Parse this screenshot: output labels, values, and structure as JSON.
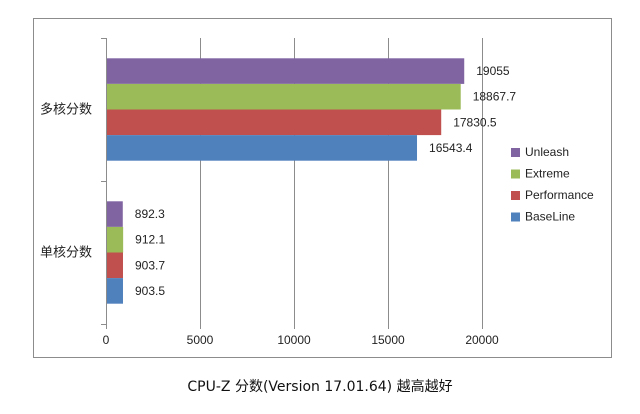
{
  "chart_data": {
    "type": "bar",
    "orientation": "horizontal",
    "title": "CPU-Z 分数(Version 17.01.64) 越高越好",
    "categories": [
      "多核分数",
      "单核分数"
    ],
    "series": [
      {
        "name": "Unleash",
        "color": "#8064a2",
        "values": [
          19055,
          892.3
        ],
        "labels": [
          "19055",
          "892.3"
        ]
      },
      {
        "name": "Extreme",
        "color": "#9bbb59",
        "values": [
          18867.7,
          912.1
        ],
        "labels": [
          "18867.7",
          "912.1"
        ]
      },
      {
        "name": "Performance",
        "color": "#c0504d",
        "values": [
          17830.5,
          903.7
        ],
        "labels": [
          "17830.5",
          "903.7"
        ]
      },
      {
        "name": "BaseLine",
        "color": "#4f81bd",
        "values": [
          16543.4,
          903.5
        ],
        "labels": [
          "16543.4",
          "903.5"
        ]
      }
    ],
    "xlim": [
      0,
      20000
    ],
    "xticks": [
      0,
      5000,
      10000,
      15000,
      20000
    ],
    "xtick_labels": [
      "0",
      "5000",
      "10000",
      "15000",
      "20000"
    ],
    "grid": true,
    "legend_position": "right"
  }
}
